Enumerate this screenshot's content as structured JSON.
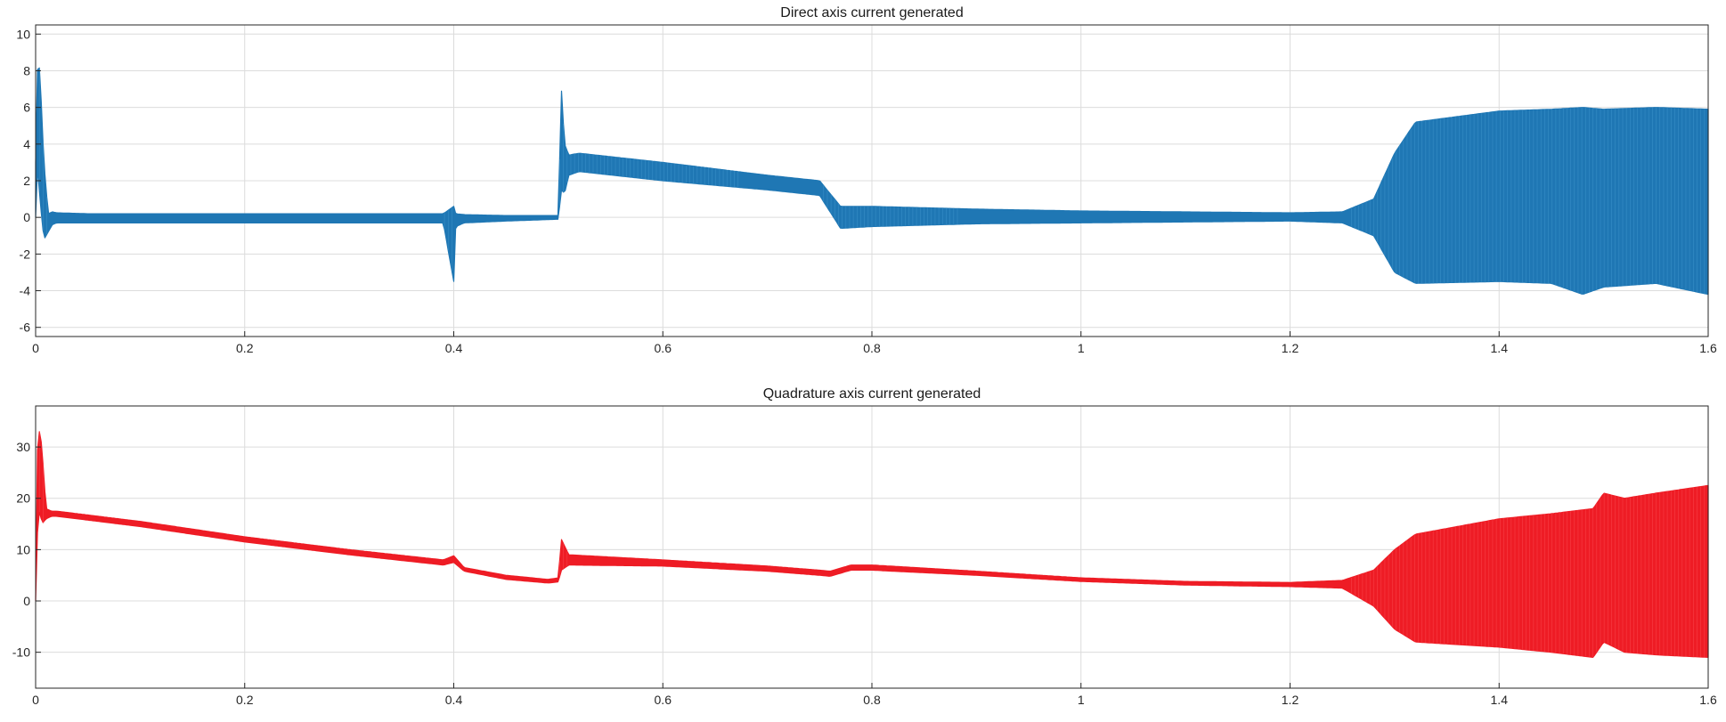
{
  "chart_data": [
    {
      "type": "line",
      "title": "Direct axis current generated",
      "xlabel": "",
      "ylabel": "",
      "xlim": [
        0,
        1.6
      ],
      "ylim": [
        -6.5,
        10.5
      ],
      "xticks": [
        "0",
        "0.2",
        "0.4",
        "0.6",
        "0.8",
        "1",
        "1.2",
        "1.4",
        "1.6"
      ],
      "yticks": [
        "-6",
        "-4",
        "-2",
        "0",
        "2",
        "4",
        "6",
        "8",
        "10"
      ],
      "grid": true,
      "color": "#1f77b4",
      "series": [
        {
          "x": [
            0,
            0.002,
            0.004,
            0.008,
            0.012,
            0.016,
            0.02,
            0.05,
            0.1,
            0.2,
            0.3,
            0.39,
            0.4,
            0.401,
            0.402,
            0.41,
            0.45,
            0.5,
            0.503,
            0.506,
            0.51,
            0.52,
            0.6,
            0.7,
            0.75,
            0.77,
            0.8,
            0.9,
            1.0,
            1.1,
            1.2,
            1.25,
            1.28,
            1.3,
            1.32,
            1.4,
            1.45,
            1.48,
            1.5,
            1.55,
            1.6
          ],
          "upper": [
            3.0,
            8.7,
            8.0,
            3.0,
            0.2,
            0.3,
            0.25,
            0.2,
            0.2,
            0.2,
            0.2,
            0.2,
            0.6,
            0.3,
            0.2,
            0.15,
            0.1,
            0.1,
            7.0,
            4.0,
            3.4,
            3.5,
            3.0,
            2.3,
            2.0,
            0.6,
            0.6,
            0.45,
            0.35,
            0.3,
            0.25,
            0.3,
            1.0,
            3.5,
            5.2,
            5.8,
            5.9,
            6.0,
            5.9,
            6.0,
            5.9
          ],
          "lower": [
            0.0,
            3.0,
            1.0,
            -1.2,
            -0.8,
            -0.4,
            -0.3,
            -0.3,
            -0.3,
            -0.3,
            -0.3,
            -0.3,
            -3.5,
            -1.0,
            -0.5,
            -0.3,
            -0.2,
            -0.1,
            1.5,
            1.3,
            2.3,
            2.5,
            2.0,
            1.5,
            1.2,
            -0.6,
            -0.5,
            -0.35,
            -0.3,
            -0.25,
            -0.2,
            -0.3,
            -1.0,
            -3.0,
            -3.6,
            -3.5,
            -3.6,
            -4.2,
            -3.8,
            -3.6,
            -4.2
          ]
        }
      ]
    },
    {
      "type": "line",
      "title": "Quadrature axis current generated",
      "xlabel": "",
      "ylabel": "",
      "xlim": [
        0,
        1.6
      ],
      "ylim": [
        -17,
        38
      ],
      "xticks": [
        "0",
        "0.2",
        "0.4",
        "0.6",
        "0.8",
        "1",
        "1.2",
        "1.4",
        "1.6"
      ],
      "yticks": [
        "-10",
        "0",
        "10",
        "20",
        "30"
      ],
      "grid": true,
      "color": "#ee1c25",
      "series": [
        {
          "x": [
            0,
            0.002,
            0.004,
            0.006,
            0.01,
            0.015,
            0.02,
            0.1,
            0.2,
            0.3,
            0.39,
            0.4,
            0.41,
            0.45,
            0.49,
            0.5,
            0.503,
            0.51,
            0.6,
            0.7,
            0.75,
            0.76,
            0.78,
            0.8,
            0.9,
            1.0,
            1.1,
            1.2,
            1.25,
            1.28,
            1.3,
            1.32,
            1.4,
            1.45,
            1.49,
            1.5,
            1.52,
            1.55,
            1.6
          ],
          "upper": [
            0.5,
            33.0,
            33.0,
            30.0,
            18.0,
            17.5,
            17.5,
            15.5,
            12.5,
            10.0,
            8.0,
            8.8,
            6.5,
            5.0,
            4.2,
            4.5,
            12.0,
            9.0,
            8.0,
            6.8,
            6.0,
            5.8,
            7.0,
            7.0,
            5.8,
            4.5,
            3.8,
            3.6,
            4.0,
            6.0,
            10.0,
            13.0,
            16.0,
            17.0,
            18.0,
            21.0,
            20.0,
            21.0,
            22.5
          ],
          "lower": [
            0.0,
            15.0,
            18.0,
            15.0,
            16.0,
            16.5,
            16.5,
            14.5,
            11.5,
            9.0,
            7.0,
            7.5,
            5.8,
            4.2,
            3.5,
            3.7,
            6.0,
            7.0,
            6.8,
            5.8,
            5.0,
            4.8,
            6.0,
            6.0,
            5.0,
            3.8,
            3.1,
            2.8,
            2.5,
            -1.0,
            -5.5,
            -8.0,
            -9.0,
            -10.0,
            -11.0,
            -8.0,
            -10.0,
            -10.5,
            -11.0
          ]
        }
      ]
    }
  ]
}
